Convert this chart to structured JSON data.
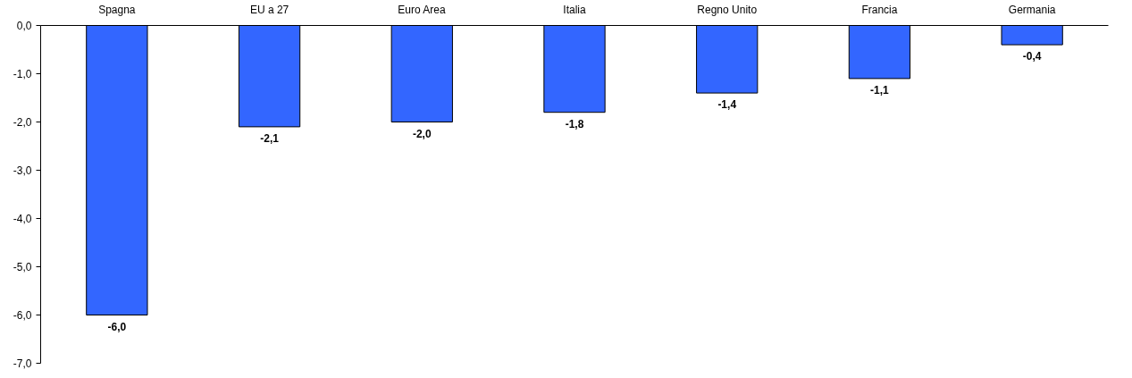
{
  "chart_data": {
    "type": "bar",
    "categories": [
      "Spagna",
      "EU a 27",
      "Euro Area",
      "Italia",
      "Regno Unito",
      "Francia",
      "Germania"
    ],
    "values": [
      -6.0,
      -2.1,
      -2.0,
      -1.8,
      -1.4,
      -1.1,
      -0.4
    ],
    "color": "#3366ff",
    "value_labels": [
      "-6,0",
      "-2,1",
      "-2,0",
      "-1,8",
      "-1,4",
      "-1,1",
      "-0,4"
    ],
    "ylim": [
      -7,
      0
    ],
    "yticks": [
      {
        "value": 0,
        "label": "0,0"
      },
      {
        "value": -1,
        "label": "-1,0"
      },
      {
        "value": -2,
        "label": "-2,0"
      },
      {
        "value": -3,
        "label": "-3,0"
      },
      {
        "value": -4,
        "label": "-4,0"
      },
      {
        "value": -5,
        "label": "-5,0"
      },
      {
        "value": -6,
        "label": "-6,0"
      },
      {
        "value": -7,
        "label": "-7,0"
      }
    ],
    "grid": false
  }
}
